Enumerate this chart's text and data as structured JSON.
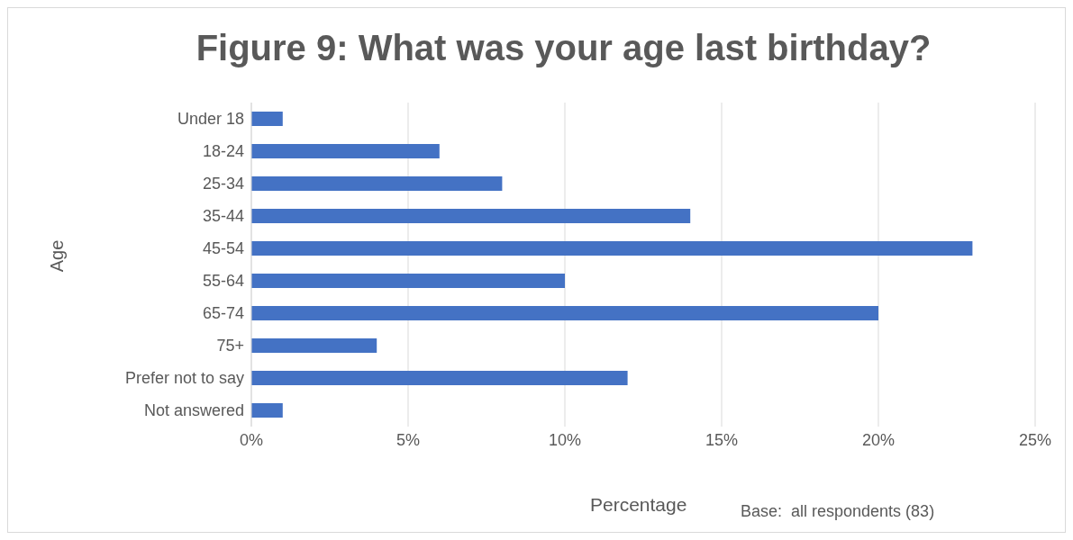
{
  "chart_data": {
    "type": "bar",
    "orientation": "horizontal",
    "title": "Figure 9: What was your age last birthday?",
    "xlabel": "Percentage",
    "ylabel": "Age",
    "categories": [
      "Under 18",
      "18-24",
      "25-34",
      "35-44",
      "45-54",
      "55-64",
      "65-74",
      "75+",
      "Prefer not to say",
      "Not answered"
    ],
    "values": [
      1,
      6,
      8,
      14,
      23,
      10,
      20,
      4,
      12,
      1
    ],
    "color": "#4472c4",
    "xlim": [
      0,
      25
    ],
    "xticks": [
      {
        "value": 0,
        "label": "0%"
      },
      {
        "value": 5,
        "label": "5%"
      },
      {
        "value": 10,
        "label": "10%"
      },
      {
        "value": 15,
        "label": "15%"
      },
      {
        "value": 20,
        "label": "20%"
      },
      {
        "value": 25,
        "label": "25%"
      }
    ],
    "grid": "x",
    "legend": false,
    "annotations": [
      "Base:  all respondents (83)"
    ]
  }
}
